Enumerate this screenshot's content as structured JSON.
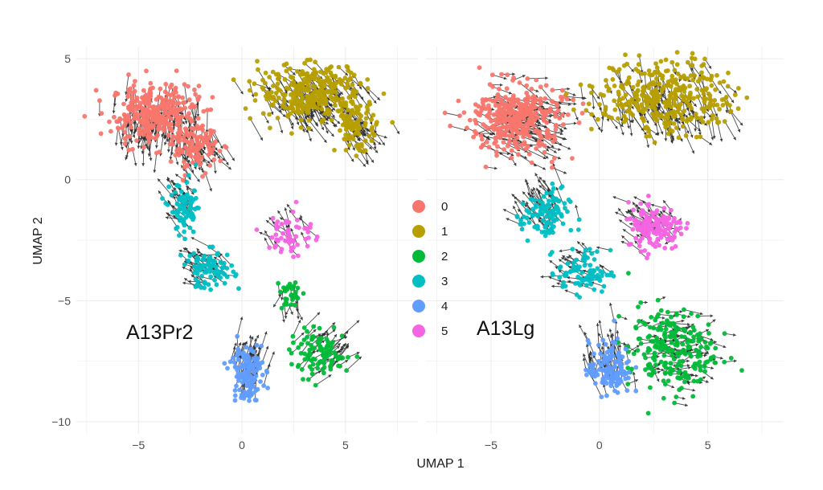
{
  "chart_data": {
    "type": "scatter",
    "subtype": "UMAP embedding with RNA velocity arrows",
    "xlabel": "UMAP 1",
    "ylabel": "UMAP 2",
    "xlim": [
      -8,
      8.5
    ],
    "ylim": [
      -10.5,
      5.5
    ],
    "xticks": [
      -5,
      0,
      5
    ],
    "yticks": [
      5,
      0,
      -5,
      -10
    ],
    "grid": true,
    "legend": {
      "placement": "center, between panels",
      "entries": [
        {
          "label": "0",
          "color": "#F8766D"
        },
        {
          "label": "1",
          "color": "#B79F00"
        },
        {
          "label": "2",
          "color": "#00BA38"
        },
        {
          "label": "3",
          "color": "#00BFC4"
        },
        {
          "label": "4",
          "color": "#619CFF"
        },
        {
          "label": "5",
          "color": "#F564E3"
        }
      ]
    },
    "panels": [
      {
        "label": "A13Pr2",
        "clusters": [
          {
            "cluster": "0",
            "center": [
              -4.2,
              2.7
            ],
            "spread": [
              1.9,
              1.1
            ],
            "n": 330,
            "velocity": [
              0.0,
              -0.7
            ]
          },
          {
            "cluster": "0",
            "center": [
              -2.2,
              1.3
            ],
            "spread": [
              1.0,
              0.8
            ],
            "n": 110,
            "velocity": [
              0.3,
              -0.6
            ]
          },
          {
            "cluster": "1",
            "center": [
              3.4,
              3.6
            ],
            "spread": [
              2.3,
              1.1
            ],
            "n": 330,
            "velocity": [
              0.5,
              -0.6
            ]
          },
          {
            "cluster": "1",
            "center": [
              5.5,
              2.2
            ],
            "spread": [
              0.9,
              0.9
            ],
            "n": 90,
            "velocity": [
              0.4,
              -0.5
            ]
          },
          {
            "cluster": "3",
            "center": [
              -2.7,
              -1.2
            ],
            "spread": [
              0.7,
              1.0
            ],
            "n": 80,
            "velocity": [
              -0.5,
              0.4
            ]
          },
          {
            "cluster": "3",
            "center": [
              -1.6,
              -3.7
            ],
            "spread": [
              1.1,
              0.7
            ],
            "n": 90,
            "velocity": [
              -0.6,
              0.3
            ]
          },
          {
            "cluster": "5",
            "center": [
              2.4,
              -2.2
            ],
            "spread": [
              1.0,
              0.9
            ],
            "n": 55,
            "velocity": [
              -0.3,
              0.4
            ]
          },
          {
            "cluster": "2",
            "center": [
              3.8,
              -7.2
            ],
            "spread": [
              1.3,
              0.8
            ],
            "n": 100,
            "velocity": [
              0.6,
              0.4
            ]
          },
          {
            "cluster": "2",
            "center": [
              2.4,
              -4.7
            ],
            "spread": [
              0.5,
              0.6
            ],
            "n": 30,
            "velocity": [
              0.0,
              -0.6
            ]
          },
          {
            "cluster": "4",
            "center": [
              0.2,
              -7.9
            ],
            "spread": [
              0.7,
              1.1
            ],
            "n": 130,
            "velocity": [
              0.2,
              0.7
            ]
          }
        ]
      },
      {
        "label": "A13Lg",
        "clusters": [
          {
            "cluster": "0",
            "center": [
              -3.8,
              2.5
            ],
            "spread": [
              2.0,
              1.3
            ],
            "n": 380,
            "velocity": [
              0.7,
              -0.2
            ]
          },
          {
            "cluster": "1",
            "center": [
              3.0,
              3.4
            ],
            "spread": [
              2.8,
              1.4
            ],
            "n": 360,
            "velocity": [
              0.3,
              -0.6
            ]
          },
          {
            "cluster": "3",
            "center": [
              -2.5,
              -1.5
            ],
            "spread": [
              1.0,
              1.0
            ],
            "n": 110,
            "velocity": [
              -0.5,
              0.6
            ]
          },
          {
            "cluster": "3",
            "center": [
              -0.7,
              -3.8
            ],
            "spread": [
              1.1,
              0.8
            ],
            "n": 80,
            "velocity": [
              -0.6,
              0.2
            ]
          },
          {
            "cluster": "5",
            "center": [
              2.6,
              -1.9
            ],
            "spread": [
              1.2,
              0.9
            ],
            "n": 150,
            "velocity": [
              -0.4,
              0.3
            ]
          },
          {
            "cluster": "2",
            "center": [
              3.3,
              -7.0
            ],
            "spread": [
              1.8,
              1.6
            ],
            "n": 230,
            "velocity": [
              0.5,
              0.0
            ]
          },
          {
            "cluster": "4",
            "center": [
              0.5,
              -7.8
            ],
            "spread": [
              0.9,
              1.0
            ],
            "n": 130,
            "velocity": [
              -0.2,
              0.7
            ]
          }
        ]
      }
    ]
  }
}
